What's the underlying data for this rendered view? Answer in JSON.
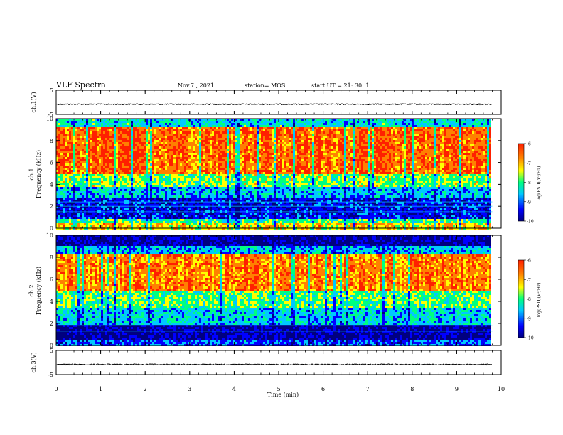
{
  "header": {
    "title": "VLF Spectra",
    "date": "Nov.7 , 2021",
    "station": "station= MOS",
    "start": "start UT = 21: 30: 1"
  },
  "colors": {
    "colormap": [
      "#000080",
      "#0000ff",
      "#00c8ff",
      "#00ff80",
      "#ffff00",
      "#ff8000",
      "#ff2000"
    ],
    "axis": "#000000"
  },
  "chart_data": [
    {
      "type": "line",
      "name": "ch1-waveform",
      "ylabel": "ch.1(V)",
      "yticks": [
        5,
        -5
      ],
      "ylim": [
        -5,
        5
      ],
      "xlim": [
        0,
        10
      ],
      "baseline": -0.8
    },
    {
      "type": "heatmap",
      "name": "ch1-spectrogram",
      "ylabel": "ch.1\nFrequency (kHz)",
      "ylabel_line1": "ch.1",
      "ylabel_line2": "Frequency (kHz)",
      "xlim": [
        0,
        9.8
      ],
      "ylim": [
        0,
        10
      ],
      "yticks": [
        0,
        2,
        4,
        6,
        8,
        10
      ],
      "zlim": [
        -10,
        -6
      ],
      "colorbar_ticks": [
        "-6",
        "-7",
        "-8",
        "-9",
        "-10"
      ],
      "colorbar_label": "log(PSD)(V²/Hz)"
    },
    {
      "type": "heatmap",
      "name": "ch2-spectrogram",
      "ylabel_line1": "ch.2",
      "ylabel_line2": "Frequency (kHz)",
      "xlim": [
        0,
        9.8
      ],
      "ylim": [
        0,
        10
      ],
      "yticks": [
        0,
        2,
        4,
        6,
        8,
        10
      ],
      "zlim": [
        -10,
        -6
      ],
      "colorbar_ticks": [
        "-6",
        "-7",
        "-8",
        "-9",
        "-10"
      ],
      "colorbar_label": "log(PSD)(V²/Hz)"
    },
    {
      "type": "line",
      "name": "ch3-waveform",
      "ylabel": "ch.3(V)",
      "yticks": [
        5,
        -5
      ],
      "ylim": [
        -5,
        5
      ],
      "xlim": [
        0,
        10
      ],
      "baseline": -0.8
    }
  ],
  "xaxis": {
    "label": "Time (min)",
    "ticks": [
      0,
      1,
      2,
      3,
      4,
      5,
      6,
      7,
      8,
      9,
      10
    ],
    "range": [
      0,
      10
    ]
  }
}
